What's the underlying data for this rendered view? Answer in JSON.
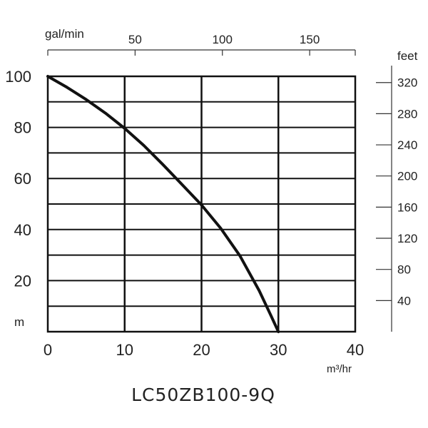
{
  "chart_data": {
    "type": "line",
    "title": "LC50ZB100-9Q",
    "x_bottom": {
      "label": "m³/hr",
      "range": [
        0,
        40
      ],
      "ticks": [
        "0",
        "10",
        "20",
        "30",
        "40"
      ]
    },
    "x_top": {
      "label": "gal/min",
      "range": [
        0,
        176.1
      ],
      "ticks": [
        "50",
        "100",
        "150"
      ]
    },
    "y_left": {
      "label": "m",
      "range": [
        0,
        100
      ],
      "ticks": [
        "20",
        "40",
        "60",
        "80",
        "100"
      ]
    },
    "y_right": {
      "label": "feet",
      "range": [
        0,
        328
      ],
      "ticks": [
        "40",
        "80",
        "120",
        "160",
        "200",
        "240",
        "280",
        "320"
      ]
    },
    "grid": true,
    "series": [
      {
        "x": [
          0,
          2.5,
          5,
          7.5,
          10,
          12.5,
          15,
          17.5,
          20,
          22.5,
          25,
          27.5,
          29,
          30
        ],
        "y": [
          100,
          95.7,
          90.9,
          85.6,
          79.6,
          72.9,
          65.4,
          57.5,
          49.6,
          40.5,
          29.7,
          16.1,
          6.5,
          0
        ]
      }
    ],
    "colors": {
      "curve": "#111111",
      "grid": "#111111",
      "text": "#222222"
    }
  }
}
